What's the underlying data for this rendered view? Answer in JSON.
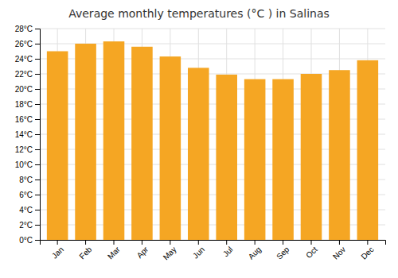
{
  "chart_data": {
    "type": "bar",
    "title": "Average monthly temperatures (°C ) in Salinas",
    "categories": [
      "Jan",
      "Feb",
      "Mar",
      "Apr",
      "May",
      "Jun",
      "Jul",
      "Aug",
      "Sep",
      "Oct",
      "Nov",
      "Dec"
    ],
    "values": [
      25.0,
      26.0,
      26.3,
      25.6,
      24.3,
      22.8,
      21.9,
      21.3,
      21.3,
      22.0,
      22.5,
      23.8
    ],
    "color": "#F5A623",
    "ylim": [
      0,
      28
    ],
    "yticks": [
      {
        "value": 0,
        "label": "0°C"
      },
      {
        "value": 2,
        "label": "2°C"
      },
      {
        "value": 4,
        "label": "4°C"
      },
      {
        "value": 6,
        "label": "6°C"
      },
      {
        "value": 8,
        "label": "8°C"
      },
      {
        "value": 10,
        "label": "10°C"
      },
      {
        "value": 12,
        "label": "12°C"
      },
      {
        "value": 14,
        "label": "14°C"
      },
      {
        "value": 16,
        "label": "16°C"
      },
      {
        "value": 18,
        "label": "18°C"
      },
      {
        "value": 20,
        "label": "20°C"
      },
      {
        "value": 22,
        "label": "22°C"
      },
      {
        "value": 24,
        "label": "24°C"
      },
      {
        "value": 26,
        "label": "26°C"
      },
      {
        "value": 28,
        "label": "28°C"
      }
    ],
    "grid": true
  }
}
